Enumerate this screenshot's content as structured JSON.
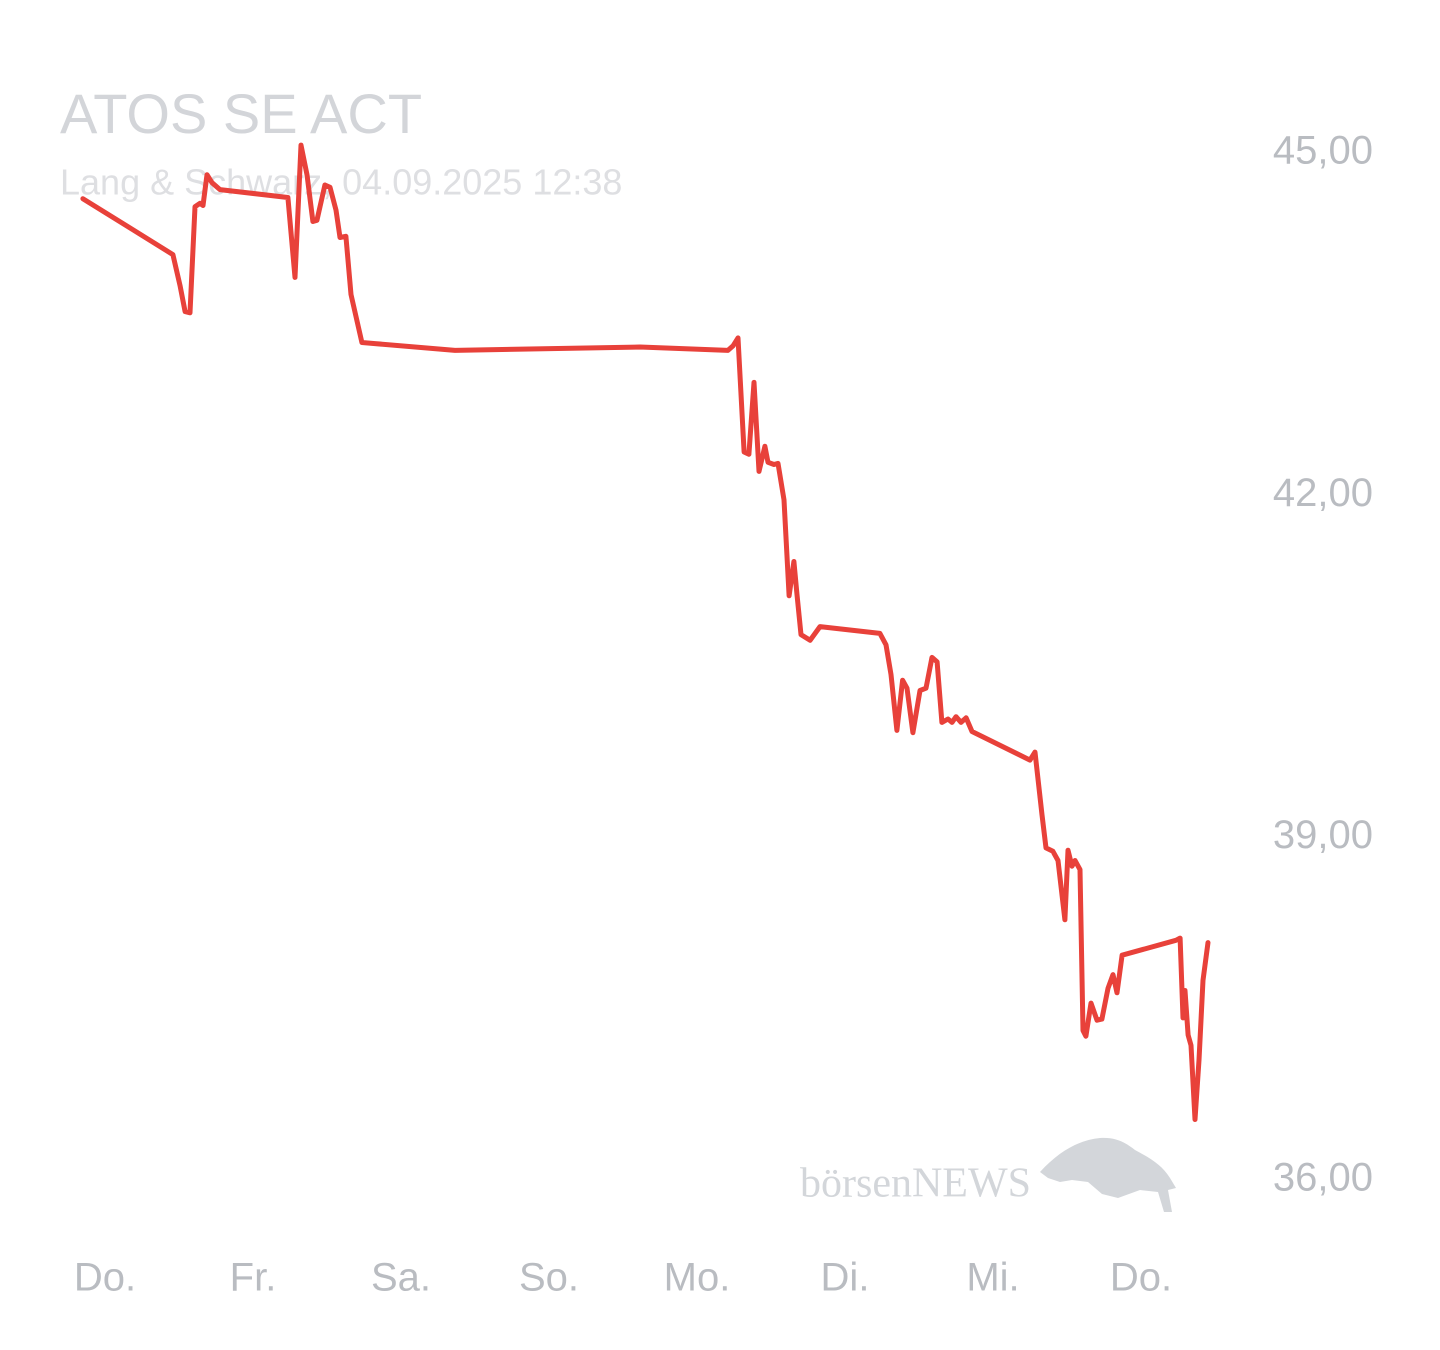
{
  "chart_data": {
    "type": "line",
    "title": "ATOS SE ACT",
    "subtitle": "Lang & Schwarz, 04.09.2025 12:38",
    "watermark": "börsenNEWS",
    "xlim": [
      -0.3,
      7.6
    ],
    "ylim": [
      35.5,
      45.5
    ],
    "grid": false,
    "xticks": [
      {
        "value": 0,
        "label": "Do."
      },
      {
        "value": 1,
        "label": "Fr."
      },
      {
        "value": 2,
        "label": "Sa."
      },
      {
        "value": 3,
        "label": "So."
      },
      {
        "value": 4,
        "label": "Mo."
      },
      {
        "value": 5,
        "label": "Di."
      },
      {
        "value": 6,
        "label": "Mi."
      },
      {
        "value": 7,
        "label": "Do."
      }
    ],
    "yticks": [
      {
        "value": 36,
        "label": "36,00"
      },
      {
        "value": 39,
        "label": "39,00"
      },
      {
        "value": 42,
        "label": "42,00"
      },
      {
        "value": 45,
        "label": "45,00"
      }
    ],
    "series": [
      {
        "name": "ATOS SE ACT",
        "color": "#e8413a",
        "x": [
          -0.149,
          0.459,
          0.507,
          0.541,
          0.574,
          0.608,
          0.642,
          0.662,
          0.689,
          0.723,
          0.777,
          1.236,
          1.284,
          1.324,
          1.365,
          1.405,
          1.432,
          1.486,
          1.52,
          1.561,
          1.588,
          1.628,
          1.662,
          1.736,
          1.824,
          2.365,
          3.615,
          4.209,
          4.243,
          4.277,
          4.318,
          4.351,
          4.385,
          4.419,
          4.459,
          4.48,
          4.52,
          4.547,
          4.588,
          4.622,
          4.655,
          4.676,
          4.703,
          4.764,
          4.831,
          5.236,
          5.277,
          5.311,
          5.351,
          5.389,
          5.419,
          5.459,
          5.507,
          5.547,
          5.588,
          5.622,
          5.655,
          5.696,
          5.723,
          5.75,
          5.784,
          5.818,
          5.858,
          6.25,
          6.284,
          6.331,
          6.358,
          6.405,
          6.439,
          6.486,
          6.507,
          6.534,
          6.554,
          6.588,
          6.608,
          6.628,
          6.662,
          6.703,
          6.736,
          6.777,
          6.811,
          6.838,
          6.872,
          7.236,
          7.264,
          7.284,
          7.297,
          7.318,
          7.338,
          7.365,
          7.392,
          7.419,
          7.453
        ],
        "values": [
          44.6,
          44.11,
          43.84,
          43.61,
          43.6,
          44.53,
          44.56,
          44.54,
          44.81,
          44.74,
          44.68,
          44.61,
          43.91,
          45.07,
          44.81,
          44.4,
          44.41,
          44.72,
          44.7,
          44.5,
          44.26,
          44.27,
          43.76,
          43.34,
          43.33,
          43.27,
          43.3,
          43.27,
          43.31,
          43.38,
          42.38,
          42.36,
          42.99,
          42.21,
          42.43,
          42.29,
          42.27,
          42.28,
          41.96,
          41.12,
          41.42,
          41.13,
          40.78,
          40.73,
          40.85,
          40.79,
          40.69,
          40.43,
          39.94,
          40.38,
          40.31,
          39.92,
          40.29,
          40.31,
          40.58,
          40.54,
          40.01,
          40.04,
          40.01,
          40.06,
          40.01,
          40.05,
          39.93,
          39.68,
          39.75,
          39.2,
          38.91,
          38.88,
          38.8,
          38.28,
          38.89,
          38.75,
          38.8,
          38.72,
          37.31,
          37.26,
          37.55,
          37.4,
          37.41,
          37.68,
          37.8,
          37.64,
          37.97,
          38.1,
          38.12,
          37.42,
          37.66,
          37.27,
          37.18,
          36.53,
          37.05,
          37.75,
          38.08
        ]
      }
    ]
  }
}
